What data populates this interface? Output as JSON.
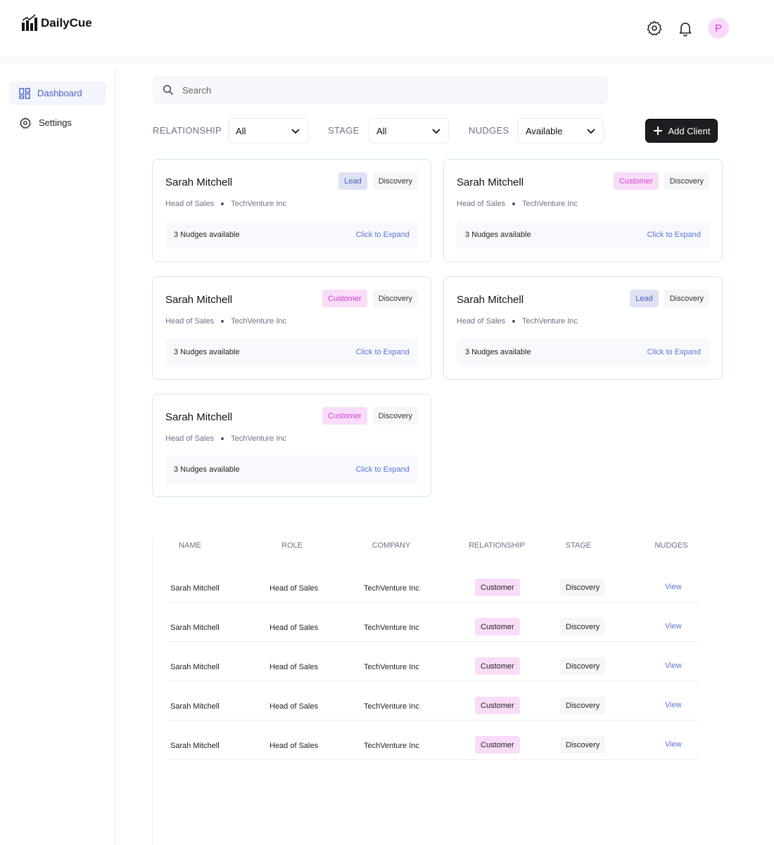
{
  "header": {
    "logo": "DailyCue",
    "avatar": "P"
  },
  "sidebar": {
    "items": [
      "Dashboard",
      "Settings"
    ]
  },
  "search": {
    "placeholder": "Search"
  },
  "filters": [
    {
      "label": "RELATIONSHIP",
      "value": "All"
    },
    {
      "label": "STAGE",
      "value": "All"
    },
    {
      "label": "NUDGES",
      "value": "Available"
    }
  ],
  "add_button": "Add Client",
  "cards": [
    {
      "name": "Sarah Mitchell",
      "role": "Head of Sales",
      "company": "TechVenture Inc",
      "relationship": "Lead",
      "relationship_color": "#4a5fc1",
      "stage": "Discovery",
      "nudges": "3 Nudges available",
      "action": "Click to Expand"
    },
    {
      "name": "Sarah Mitchell",
      "role": "Head of Sales",
      "company": "TechVenture Inc",
      "relationship": "Customer",
      "relationship_color": "#d63fd6",
      "stage": "Discovery",
      "nudges": "3 Nudges available",
      "action": "Click to Expand"
    },
    {
      "name": "Sarah Mitchell",
      "role": "Head of Sales",
      "company": "TechVenture Inc",
      "relationship": "Customer",
      "relationship_color": "#d63fd6",
      "stage": "Discovery",
      "nudges": "3 Nudges available",
      "action": "Click to Expand"
    },
    {
      "name": "Sarah Mitchell",
      "role": "Head of Sales",
      "company": "TechVenture Inc",
      "relationship": "Lead",
      "relationship_color": "#4a5fc1",
      "stage": "Discovery",
      "nudges": "3 Nudges available",
      "action": "Click to Expand"
    },
    {
      "name": "Sarah Mitchell",
      "role": "Head of Sales",
      "company": "TechVenture Inc",
      "relationship": "Customer",
      "relationship_color": "#d63fd6",
      "stage": "Discovery",
      "nudges": "3 Nudges available",
      "action": "Click to Expand"
    }
  ],
  "table": {
    "columns": [
      "NAME",
      "ROLE",
      "COMPANY",
      "RELATIONSHIP",
      "STAGE",
      "NUDGES"
    ],
    "rows": [
      {
        "name": "Sarah Mitchell",
        "role": "Head of Sales",
        "company": "TechVenture Inc",
        "relationship": "Customer",
        "relationship_color": "#d63fd6",
        "stage": "Discovery",
        "action": "View"
      },
      {
        "name": "Sarah Mitchell",
        "role": "Head of Sales",
        "company": "TechVenture Inc",
        "relationship": "Customer",
        "relationship_color": "#d63fd6",
        "stage": "Discovery",
        "action": "View"
      },
      {
        "name": "Sarah Mitchell",
        "role": "Head of Sales",
        "company": "TechVenture Inc",
        "relationship": "Customer",
        "relationship_color": "#d63fd6",
        "stage": "Discovery",
        "action": "View"
      },
      {
        "name": "Sarah Mitchell",
        "role": "Head of Sales",
        "company": "TechVenture Inc",
        "relationship": "Customer",
        "relationship_color": "#d63fd6",
        "stage": "Discovery",
        "action": "View"
      },
      {
        "name": "Sarah Mitchell",
        "role": "Head of Sales",
        "company": "TechVenture Inc",
        "relationship": "Customer",
        "relationship_color": "#d63fd6",
        "stage": "Discovery",
        "action": "View"
      }
    ]
  }
}
